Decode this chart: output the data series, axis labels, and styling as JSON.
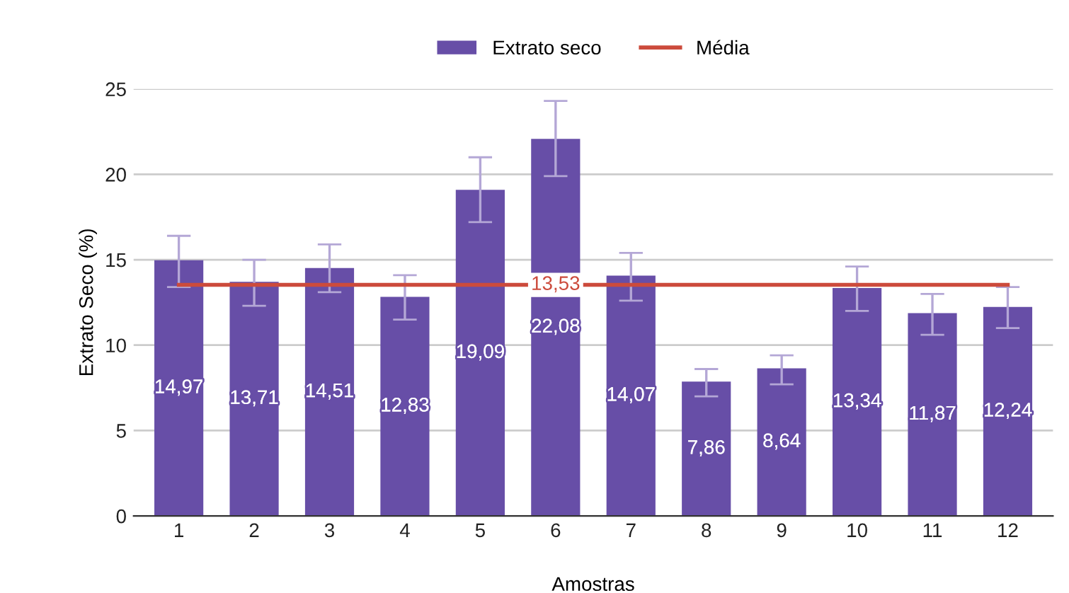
{
  "chart_data": {
    "type": "bar",
    "xlabel": "Amostras",
    "ylabel": "Extrato Seco (%)",
    "categories": [
      "1",
      "2",
      "3",
      "4",
      "5",
      "6",
      "7",
      "8",
      "9",
      "10",
      "11",
      "12"
    ],
    "series": [
      {
        "name": "Extrato seco",
        "color": "#674ea7",
        "values": [
          14.97,
          13.71,
          14.51,
          12.83,
          19.09,
          22.08,
          14.07,
          7.86,
          8.64,
          13.34,
          11.87,
          12.24
        ],
        "value_labels": [
          "14,97",
          "13,71",
          "14,51",
          "12,83",
          "19,09",
          "22,08",
          "14,07",
          "7,86",
          "8,64",
          "13,34",
          "11,87",
          "12,24"
        ],
        "errors": [
          [
            13.4,
            16.4
          ],
          [
            12.3,
            15.0
          ],
          [
            13.1,
            15.9
          ],
          [
            11.5,
            14.1
          ],
          [
            17.2,
            21.0
          ],
          [
            19.9,
            24.3
          ],
          [
            12.6,
            15.4
          ],
          [
            7.0,
            8.6
          ],
          [
            7.7,
            9.4
          ],
          [
            12.0,
            14.6
          ],
          [
            10.6,
            13.0
          ],
          [
            11.0,
            13.4
          ]
        ]
      },
      {
        "name": "Média",
        "type": "line",
        "color": "#cc4b3c",
        "values": [
          13.53,
          13.53,
          13.53,
          13.53,
          13.53,
          13.53,
          13.53,
          13.53,
          13.53,
          13.53,
          13.53,
          13.53
        ],
        "value_labels": [
          null,
          null,
          null,
          null,
          null,
          "13,53",
          null,
          null,
          null,
          null,
          null,
          null
        ]
      }
    ],
    "ylim": [
      0,
      25
    ],
    "yticks": [
      0,
      5,
      10,
      15,
      20,
      25
    ],
    "grid": "y",
    "legend": "top"
  }
}
